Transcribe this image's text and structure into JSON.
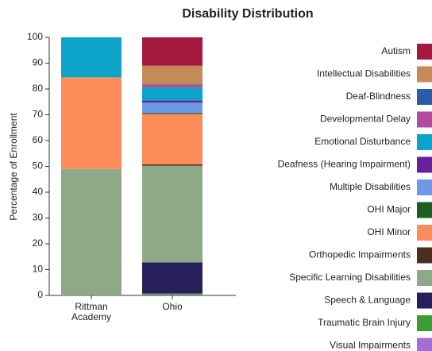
{
  "chart_data": {
    "type": "stacked_bar",
    "title": "Disability Distribution",
    "y_label": "Percentage of Enrollment",
    "categories": [
      "Rittman Academy",
      "Ohio"
    ],
    "ylim": [
      0,
      100
    ],
    "yticks": [
      0,
      10,
      20,
      30,
      40,
      50,
      60,
      70,
      80,
      90,
      100
    ],
    "series": [
      {
        "name": "Autism",
        "color": "#a4193f",
        "values": [
          0,
          11
        ]
      },
      {
        "name": "Intellectual Disabilities",
        "color": "#c58a55",
        "values": [
          0,
          7.3
        ]
      },
      {
        "name": "Deaf-Blindness",
        "color": "#2c5ba8",
        "values": [
          0,
          0.2
        ]
      },
      {
        "name": "Developmental Delay",
        "color": "#b04c9e",
        "values": [
          0,
          1
        ]
      },
      {
        "name": "Emotional Disturbance",
        "color": "#0ea3c9",
        "values": [
          15.5,
          5
        ]
      },
      {
        "name": "Deafness (Hearing Impairment)",
        "color": "#6a1e9a",
        "values": [
          0,
          0.8
        ]
      },
      {
        "name": "Multiple Disabilities",
        "color": "#6d9ae8",
        "values": [
          0,
          4
        ]
      },
      {
        "name": "OHI Major",
        "color": "#1b5e20",
        "values": [
          0,
          0.4
        ]
      },
      {
        "name": "OHI Minor",
        "color": "#fe8c5a",
        "values": [
          35.5,
          19.5
        ]
      },
      {
        "name": "Orthopedic Impairments",
        "color": "#4a2e1e",
        "values": [
          0,
          0.5
        ]
      },
      {
        "name": "Specific Learning Disabilities",
        "color": "#8fa887",
        "values": [
          49,
          37.5
        ]
      },
      {
        "name": "Speech & Language",
        "color": "#271f5b",
        "values": [
          0,
          12
        ]
      },
      {
        "name": "Traumatic Brain Injury",
        "color": "#3e9a35",
        "values": [
          0,
          0.5
        ]
      },
      {
        "name": "Visual Impairments",
        "color": "#a56cd6",
        "values": [
          0,
          0.3
        ]
      }
    ]
  }
}
